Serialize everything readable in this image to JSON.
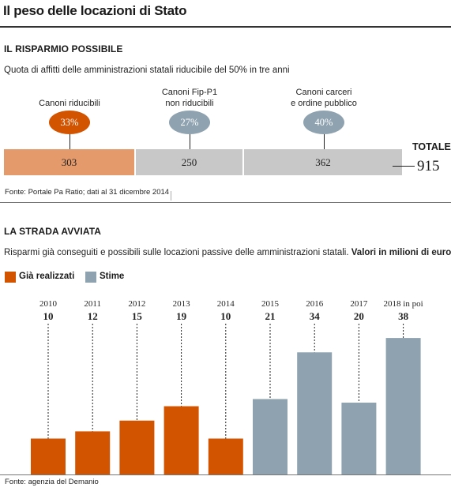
{
  "title": "Il peso delle locazioni di Stato",
  "section1": {
    "heading": "IL RISPARMIO POSSIBILE",
    "subtitle": "Quota di affitti delle amministrazioni statali riducibile del 50% in tre anni",
    "source": "Fonte: Portale Pa Ratio; dati al 31 dicembre 2014",
    "total_label": "TOTALE",
    "total_value": "915",
    "segments": [
      {
        "label_line1": "Canoni riducibili",
        "label_line2": "",
        "percent": "33%",
        "value": "303",
        "pill_color": "#d35400",
        "bar_color": "#e59a6c"
      },
      {
        "label_line1": "Canoni Fip-P1",
        "label_line2": "non riducibili",
        "percent": "27%",
        "value": "250",
        "pill_color": "#8fa2b0",
        "bar_color": "#c8c8c8"
      },
      {
        "label_line1": "Canoni carceri",
        "label_line2": "e ordine pubblico",
        "percent": "40%",
        "value": "362",
        "pill_color": "#8fa2b0",
        "bar_color": "#c8c8c8"
      }
    ]
  },
  "section2": {
    "heading": "LA STRADA AVVIATA",
    "subtitle_normal": "Risparmi già conseguiti e possibili sulle locazioni passive delle amministrazioni statali. ",
    "subtitle_bold": "Valori in milioni di euro",
    "source": "Fonte:  agenzia del Demanio",
    "legend": [
      {
        "label": "Già realizzati",
        "color": "#d35400"
      },
      {
        "label": "Stime",
        "color": "#8fa2b0"
      }
    ]
  },
  "chart_data": [
    {
      "type": "bar",
      "title": "IL RISPARMIO POSSIBILE",
      "categories": [
        "Canoni riducibili",
        "Canoni Fip-P1 non riducibili",
        "Canoni carceri e ordine pubblico"
      ],
      "values": [
        303,
        250,
        362
      ],
      "percentages": [
        "33%",
        "27%",
        "40%"
      ],
      "total": 915,
      "orientation": "horizontal-stacked"
    },
    {
      "type": "bar",
      "title": "LA STRADA AVVIATA",
      "categories": [
        "2010",
        "2011",
        "2012",
        "2013",
        "2014",
        "2015",
        "2016",
        "2017",
        "2018 in poi"
      ],
      "values": [
        10,
        12,
        15,
        19,
        10,
        21,
        34,
        20,
        38
      ],
      "series_type": [
        "realized",
        "realized",
        "realized",
        "realized",
        "realized",
        "estimate",
        "estimate",
        "estimate",
        "estimate"
      ],
      "colors": {
        "realized": "#d35400",
        "estimate": "#8fa2b0"
      },
      "ylabel": "",
      "ylim": [
        0,
        38
      ],
      "legend_position": "top-left"
    }
  ]
}
